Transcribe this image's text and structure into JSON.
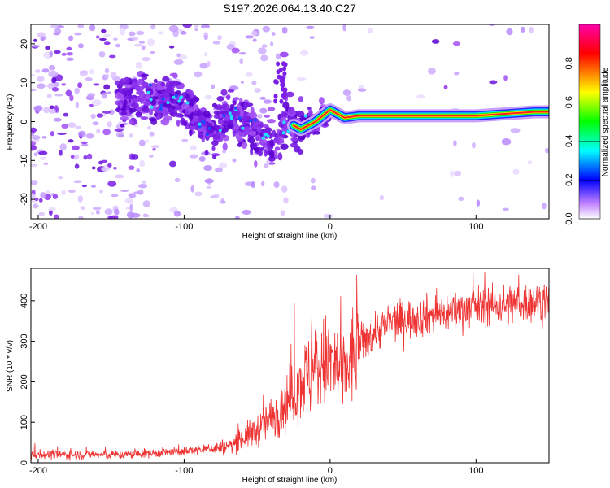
{
  "title": "S197.2026.064.13.40.C27",
  "chart_data": [
    {
      "type": "heatmap",
      "xlabel": "Height of straight line (km)",
      "ylabel": "Frequency (Hz)",
      "xlim": [
        -205,
        150
      ],
      "ylim": [
        -25,
        25
      ],
      "xticks": [
        -200,
        -100,
        0,
        100
      ],
      "yticks": [
        -20,
        -10,
        0,
        10,
        20
      ],
      "grid": false,
      "colorbar": {
        "label": "Normalized spectral amplitude",
        "range": [
          0,
          1
        ],
        "ticks": [
          "0.0",
          "0.2",
          "0.4",
          "0.6",
          "0.8"
        ],
        "colors": [
          "#ffffff",
          "#a040ff",
          "#0000ff",
          "#00ffff",
          "#00ff00",
          "#ffff00",
          "#ff0000",
          "#ff00aa"
        ]
      },
      "ridge": {
        "x": [
          -140,
          -120,
          -100,
          -90,
          -80,
          -70,
          -60,
          -50,
          -40,
          -30,
          -20,
          -10,
          0,
          10,
          20,
          40,
          60,
          80,
          100,
          120,
          140,
          150
        ],
        "y": [
          5,
          6,
          5,
          1,
          -3,
          2,
          0,
          -2,
          -5,
          0,
          -2,
          0,
          3,
          1,
          1.5,
          1.5,
          1.5,
          1.5,
          1.5,
          2,
          2.5,
          2.5
        ]
      }
    },
    {
      "type": "line",
      "xlabel": "Height of straight line (km)",
      "ylabel": "SNR (10 * v/v)",
      "xlim": [
        -205,
        150
      ],
      "ylim": [
        0,
        480
      ],
      "xticks": [
        -200,
        -100,
        0,
        100
      ],
      "yticks": [
        0,
        100,
        200,
        300,
        400
      ],
      "grid": false,
      "color": "#ee3333",
      "trend": {
        "x": [
          -205,
          -140,
          -100,
          -70,
          -60,
          -50,
          -40,
          -30,
          -20,
          -10,
          0,
          10,
          20,
          30,
          40,
          60,
          80,
          100,
          120,
          150
        ],
        "y": [
          20,
          20,
          28,
          40,
          60,
          80,
          110,
          150,
          200,
          230,
          250,
          220,
          290,
          320,
          345,
          360,
          370,
          385,
          390,
          400
        ]
      }
    }
  ]
}
